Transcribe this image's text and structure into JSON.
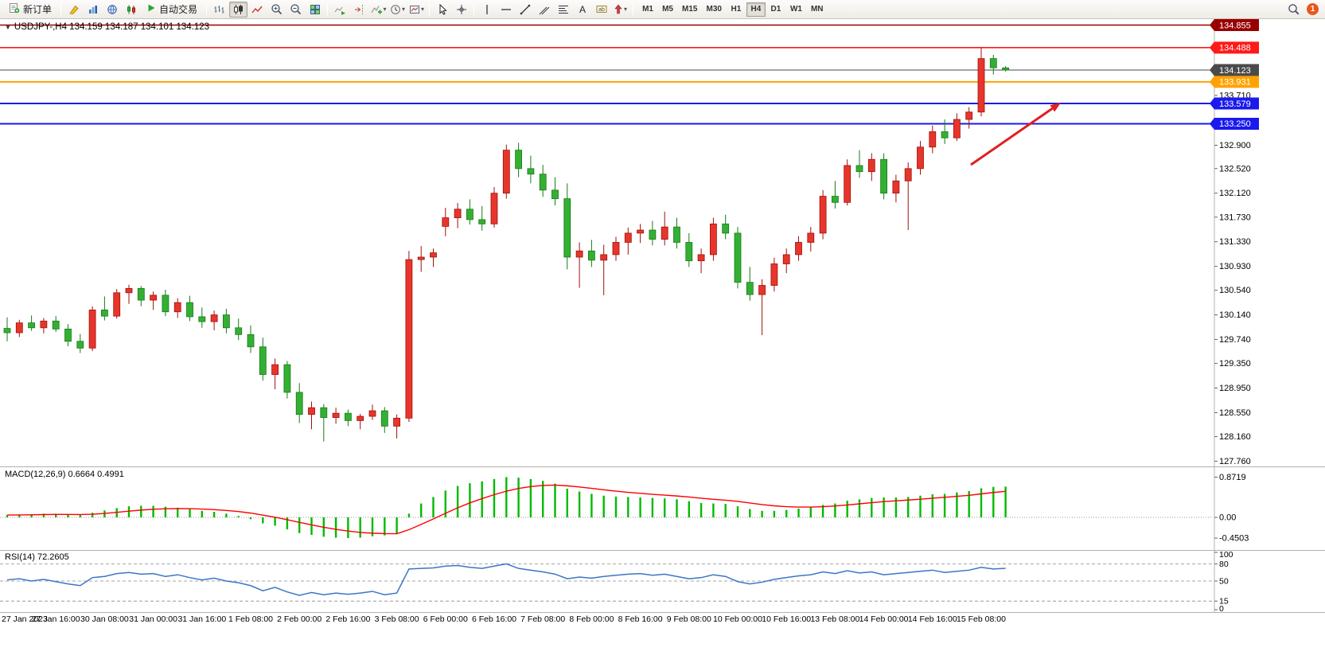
{
  "toolbar": {
    "new_order_label": "新订单",
    "autotrading_label": "自动交易",
    "timeframes": [
      "M1",
      "M5",
      "M15",
      "M30",
      "H1",
      "H4",
      "D1",
      "W1",
      "MN"
    ],
    "active_timeframe": "H4",
    "notification_count": "1",
    "icons": [
      "new-order-icon",
      "metaeditor-icon",
      "data-window-icon",
      "market-watch-icon",
      "terminal-icon",
      "autotrading-play-icon",
      "bars-chart-icon",
      "candlestick-chart-icon",
      "line-chart-icon",
      "zoom-in-icon",
      "zoom-out-icon",
      "tile-windows-icon",
      "auto-scroll-icon",
      "chart-shift-icon",
      "add-indicator-icon",
      "periods-icon",
      "templates-icon",
      "cursor-icon",
      "crosshair-icon",
      "vertical-line-icon",
      "horizontal-line-icon",
      "trendline-icon",
      "equidistant-channel-icon",
      "fibonacci-icon",
      "text-icon",
      "text-label-icon",
      "arrow-tools-icon",
      "search-icon"
    ]
  },
  "chart_header": {
    "symbol": "USDJPY-,H4",
    "ohlc": "134.159 134.187 134.101 134.123"
  },
  "indicator_labels": {
    "macd": "MACD(12,26,9) 0.6664 0.4991",
    "rsi": "RSI(14) 72.2605"
  },
  "colors": {
    "up_candle": "#e8352b",
    "up_border": "#9c120c",
    "down_candle": "#33b033",
    "down_border": "#187a18",
    "macd_histogram": "#00bb00",
    "macd_signal": "#ff0000",
    "rsi_line": "#3b76c6",
    "annotation": "#e02020"
  },
  "chart_data": {
    "type": "candlestick",
    "symbol": "USDJPY-",
    "timeframe": "H4",
    "color_convention": "red = bullish, green = bearish",
    "label_every_n_bars": 4,
    "time_labels": [
      "27 Jan 2023",
      "27 Jan 16:00",
      "30 Jan 08:00",
      "31 Jan 00:00",
      "31 Jan 16:00",
      "1 Feb 08:00",
      "2 Feb 00:00",
      "2 Feb 16:00",
      "3 Feb 08:00",
      "6 Feb 00:00",
      "6 Feb 16:00",
      "7 Feb 08:00",
      "8 Feb 00:00",
      "8 Feb 16:00",
      "9 Feb 08:00",
      "10 Feb 00:00",
      "10 Feb 16:00",
      "13 Feb 08:00",
      "14 Feb 00:00",
      "14 Feb 16:00",
      "15 Feb 08:00"
    ],
    "ohlc": [
      [
        129.92,
        130.1,
        129.71,
        129.85
      ],
      [
        129.85,
        130.06,
        129.78,
        130.01
      ],
      [
        130.01,
        130.13,
        129.88,
        129.93
      ],
      [
        129.93,
        130.09,
        129.84,
        130.04
      ],
      [
        130.04,
        130.12,
        129.86,
        129.91
      ],
      [
        129.91,
        129.99,
        129.63,
        129.71
      ],
      [
        129.71,
        129.83,
        129.52,
        129.6
      ],
      [
        129.6,
        130.28,
        129.55,
        130.22
      ],
      [
        130.22,
        130.44,
        130.05,
        130.12
      ],
      [
        130.12,
        130.56,
        130.08,
        130.5
      ],
      [
        130.5,
        130.63,
        130.32,
        130.57
      ],
      [
        130.57,
        130.61,
        130.28,
        130.38
      ],
      [
        130.38,
        130.52,
        130.22,
        130.46
      ],
      [
        130.46,
        130.55,
        130.12,
        130.19
      ],
      [
        130.19,
        130.41,
        130.09,
        130.34
      ],
      [
        130.34,
        130.45,
        130.04,
        130.11
      ],
      [
        130.11,
        130.26,
        129.93,
        130.03
      ],
      [
        130.03,
        130.21,
        129.89,
        130.14
      ],
      [
        130.14,
        130.24,
        129.84,
        129.93
      ],
      [
        129.93,
        130.08,
        129.73,
        129.82
      ],
      [
        129.82,
        129.97,
        129.52,
        129.62
      ],
      [
        129.62,
        129.77,
        129.07,
        129.17
      ],
      [
        129.17,
        129.43,
        128.93,
        129.33
      ],
      [
        129.33,
        129.39,
        128.78,
        128.88
      ],
      [
        128.88,
        129.03,
        128.38,
        128.52
      ],
      [
        128.52,
        128.73,
        128.28,
        128.63
      ],
      [
        128.63,
        128.69,
        128.08,
        128.47
      ],
      [
        128.47,
        128.63,
        128.37,
        128.54
      ],
      [
        128.54,
        128.6,
        128.33,
        128.42
      ],
      [
        128.42,
        128.53,
        128.28,
        128.49
      ],
      [
        128.49,
        128.68,
        128.43,
        128.58
      ],
      [
        128.58,
        128.64,
        128.22,
        128.33
      ],
      [
        128.33,
        128.52,
        128.13,
        128.46
      ],
      [
        128.46,
        131.18,
        128.4,
        131.04
      ],
      [
        131.04,
        131.26,
        130.84,
        131.08
      ],
      [
        131.08,
        131.22,
        130.92,
        131.15
      ],
      [
        131.58,
        131.88,
        131.42,
        131.72
      ],
      [
        131.72,
        131.96,
        131.55,
        131.86
      ],
      [
        131.86,
        132.02,
        131.61,
        131.69
      ],
      [
        131.69,
        131.91,
        131.51,
        131.62
      ],
      [
        131.62,
        132.22,
        131.56,
        132.12
      ],
      [
        132.12,
        132.91,
        132.03,
        132.82
      ],
      [
        132.82,
        132.94,
        132.38,
        132.52
      ],
      [
        132.52,
        132.73,
        132.28,
        132.43
      ],
      [
        132.43,
        132.58,
        132.06,
        132.17
      ],
      [
        132.17,
        132.38,
        131.92,
        132.03
      ],
      [
        132.03,
        132.28,
        130.88,
        131.08
      ],
      [
        131.08,
        131.32,
        130.58,
        131.18
      ],
      [
        131.18,
        131.36,
        130.92,
        131.03
      ],
      [
        131.03,
        131.28,
        130.46,
        131.12
      ],
      [
        131.12,
        131.41,
        131.02,
        131.32
      ],
      [
        131.32,
        131.56,
        131.12,
        131.47
      ],
      [
        131.47,
        131.62,
        131.31,
        131.52
      ],
      [
        131.52,
        131.67,
        131.27,
        131.37
      ],
      [
        131.37,
        131.82,
        131.27,
        131.57
      ],
      [
        131.57,
        131.72,
        131.22,
        131.32
      ],
      [
        131.32,
        131.47,
        130.92,
        131.02
      ],
      [
        131.02,
        131.22,
        130.82,
        131.12
      ],
      [
        131.12,
        131.72,
        131.02,
        131.62
      ],
      [
        131.62,
        131.77,
        131.37,
        131.47
      ],
      [
        131.47,
        131.57,
        130.57,
        130.67
      ],
      [
        130.67,
        130.92,
        130.37,
        130.47
      ],
      [
        130.47,
        130.72,
        129.81,
        130.62
      ],
      [
        130.62,
        131.07,
        130.52,
        130.97
      ],
      [
        130.97,
        131.22,
        130.82,
        131.12
      ],
      [
        131.12,
        131.42,
        131.02,
        131.32
      ],
      [
        131.32,
        131.57,
        131.17,
        131.47
      ],
      [
        131.47,
        132.17,
        131.37,
        132.07
      ],
      [
        132.07,
        132.32,
        131.87,
        131.97
      ],
      [
        131.97,
        132.67,
        131.92,
        132.57
      ],
      [
        132.57,
        132.82,
        132.37,
        132.47
      ],
      [
        132.47,
        132.77,
        132.32,
        132.67
      ],
      [
        132.67,
        132.77,
        132.02,
        132.12
      ],
      [
        132.12,
        132.42,
        131.97,
        132.32
      ],
      [
        132.32,
        132.62,
        131.52,
        132.52
      ],
      [
        132.52,
        132.97,
        132.42,
        132.87
      ],
      [
        132.87,
        133.22,
        132.77,
        133.12
      ],
      [
        133.12,
        133.32,
        132.92,
        133.02
      ],
      [
        133.02,
        133.42,
        132.97,
        133.32
      ],
      [
        133.32,
        133.52,
        133.17,
        133.44
      ],
      [
        133.44,
        134.49,
        133.37,
        134.31
      ],
      [
        134.31,
        134.37,
        134.05,
        134.16
      ],
      [
        134.159,
        134.187,
        134.101,
        134.123
      ]
    ],
    "price_axis": {
      "min": 127.76,
      "max": 134.855,
      "plain_ticks": [
        133.71,
        132.9,
        132.52,
        132.12,
        131.73,
        131.33,
        130.93,
        130.54,
        130.14,
        129.74,
        129.35,
        128.95,
        128.55,
        128.16,
        127.76
      ],
      "line_levels": [
        {
          "price": 134.855,
          "color": "#990000",
          "width": 1.4,
          "role": "resistance"
        },
        {
          "price": 134.488,
          "color": "#ff1a1a",
          "width": 1.6,
          "role": "resistance"
        },
        {
          "price": 134.123,
          "color": "#4a4a4a",
          "width": 1.0,
          "role": "current-price"
        },
        {
          "price": 133.931,
          "color": "#ffa200",
          "width": 2.0,
          "role": "level"
        },
        {
          "price": 133.579,
          "color": "#1a1aee",
          "width": 2.0,
          "role": "support"
        },
        {
          "price": 133.25,
          "color": "#1a1aee",
          "width": 2.0,
          "role": "support"
        }
      ]
    },
    "macd": {
      "label": "MACD(12,26,9)",
      "current": "0.6664",
      "signal_current": "0.4991",
      "signal_period": 9,
      "axis_ticks": [
        "0.8719",
        "0.00",
        "-0.4503"
      ],
      "values": [
        0.05,
        0.06,
        0.07,
        0.08,
        0.08,
        0.06,
        0.05,
        0.1,
        0.15,
        0.2,
        0.24,
        0.25,
        0.25,
        0.23,
        0.21,
        0.18,
        0.14,
        0.12,
        0.08,
        0.03,
        -0.04,
        -0.13,
        -0.18,
        -0.26,
        -0.34,
        -0.38,
        -0.42,
        -0.44,
        -0.45,
        -0.44,
        -0.41,
        -0.39,
        -0.36,
        0.08,
        0.3,
        0.44,
        0.58,
        0.68,
        0.74,
        0.78,
        0.83,
        0.872,
        0.86,
        0.83,
        0.79,
        0.73,
        0.62,
        0.56,
        0.51,
        0.47,
        0.45,
        0.44,
        0.43,
        0.42,
        0.41,
        0.39,
        0.35,
        0.31,
        0.3,
        0.29,
        0.24,
        0.18,
        0.14,
        0.14,
        0.16,
        0.19,
        0.22,
        0.27,
        0.3,
        0.36,
        0.39,
        0.42,
        0.43,
        0.43,
        0.44,
        0.47,
        0.5,
        0.51,
        0.54,
        0.57,
        0.63,
        0.66,
        0.6664
      ]
    },
    "rsi": {
      "label": "RSI(14)",
      "period": 14,
      "current": "72.2605",
      "levels": [
        80,
        50,
        15
      ],
      "axis_ticks": [
        "100",
        "80",
        "50",
        "15",
        "0"
      ],
      "values": [
        52,
        54,
        50,
        53,
        49,
        45,
        42,
        56,
        58,
        63,
        65,
        62,
        63,
        58,
        61,
        56,
        52,
        55,
        50,
        47,
        42,
        33,
        39,
        31,
        25,
        30,
        26,
        29,
        27,
        29,
        32,
        26,
        29,
        71,
        72,
        73,
        76,
        77,
        74,
        72,
        76,
        80,
        72,
        69,
        66,
        62,
        54,
        57,
        55,
        58,
        60,
        62,
        63,
        60,
        62,
        58,
        54,
        56,
        61,
        58,
        49,
        45,
        48,
        53,
        56,
        59,
        61,
        66,
        63,
        68,
        64,
        66,
        61,
        63,
        65,
        67,
        69,
        65,
        67,
        69,
        74,
        71,
        72.26
      ]
    },
    "annotation_arrow": {
      "from": [
        1220,
        207
      ],
      "to": [
        1333,
        129
      ],
      "color": "#e02020"
    }
  }
}
